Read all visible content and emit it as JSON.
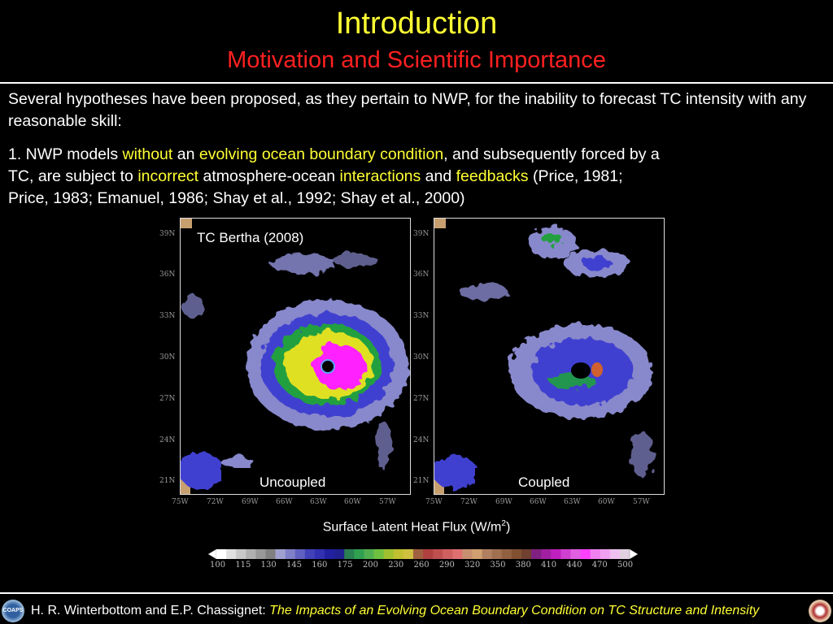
{
  "slide": {
    "title": "Introduction",
    "subtitle": "Motivation and Scientific Importance"
  },
  "body": {
    "intro": "Several hypotheses have been proposed, as they pertain to NWP, for the inability to forecast TC intensity with any reasonable skill:",
    "point1": {
      "t1": "1. NWP models ",
      "h1": "without",
      "t2": " an ",
      "h2": "evolving ocean boundary condition",
      "t3": ", and subsequently forced by a",
      "t4": "TC, are subject to ",
      "h3": "incorrect",
      "t5": " atmosphere-ocean ",
      "h4": "interactions",
      "t6": " and ",
      "h5": "feedbacks",
      "t7": " (Price, 1981;",
      "t8": "Price, 1983; Emanuel, 1986; Shay et al., 1992; Shay et al., 2000)"
    }
  },
  "figure": {
    "storm_label": "TC Bertha (2008)",
    "left_label": "Uncoupled",
    "right_label": "Coupled",
    "lat_ticks": [
      "39N",
      "36N",
      "33N",
      "30N",
      "27N",
      "24N",
      "21N"
    ],
    "lon_ticks": [
      "75W",
      "72W",
      "69W",
      "66W",
      "63W",
      "60W",
      "57W"
    ],
    "caption_main": "Surface Latent Heat Flux (W/m",
    "caption_sup": "2",
    "caption_end": ")",
    "colorbar_labels": [
      "100",
      "115",
      "130",
      "145",
      "160",
      "175",
      "200",
      "230",
      "260",
      "290",
      "320",
      "350",
      "380",
      "410",
      "440",
      "470",
      "500"
    ],
    "colors": {
      "weak": "#8888cc",
      "moderate": "#4040d0",
      "green": "#20a040",
      "yellow": "#e0e020",
      "magenta": "#ff20ff",
      "orange": "#d06030"
    }
  },
  "footer": {
    "authors": "H. R. Winterbottom and E.P. Chassignet: ",
    "talk_title": "The Impacts of an Evolving Ocean Boundary Condition on TC Structure and Intensity",
    "logo_left_text": "COAPS"
  }
}
